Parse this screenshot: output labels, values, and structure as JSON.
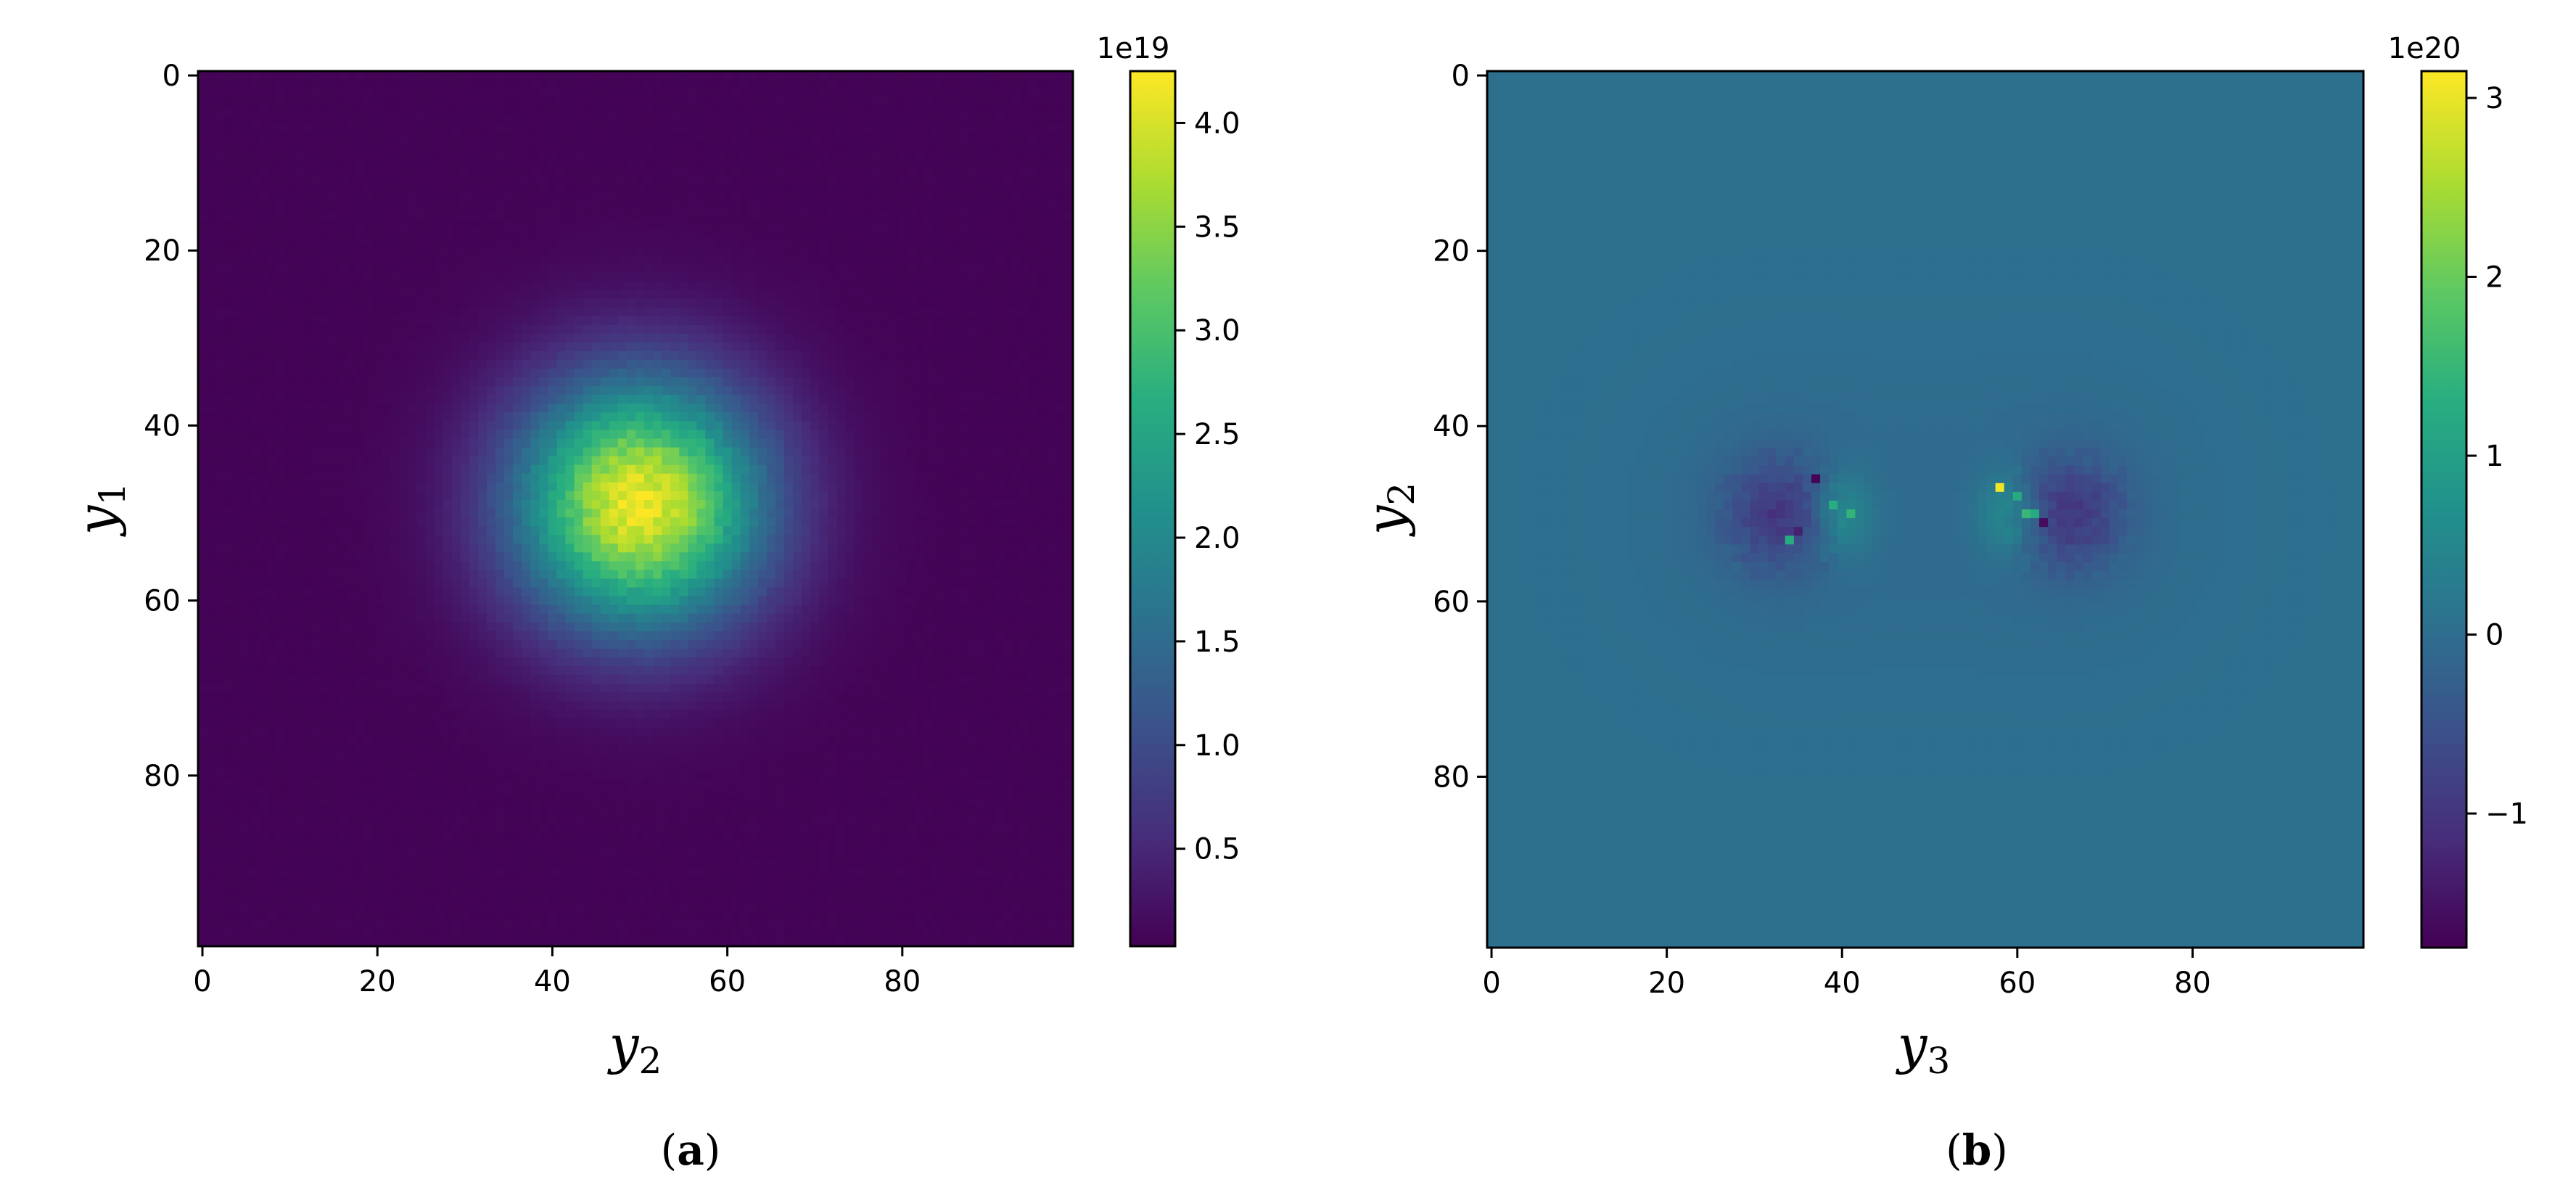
{
  "chart_data": [
    {
      "type": "heatmap",
      "panel": "(a)",
      "caption": "a",
      "xlabel": {
        "var": "y",
        "sub": "2"
      },
      "ylabel": {
        "var": "y",
        "sub": "1"
      },
      "grid": false,
      "xlim": [
        -0.5,
        99.5
      ],
      "ylim": [
        99.5,
        -0.5
      ],
      "xticks": [
        0,
        20,
        40,
        60,
        80
      ],
      "yticks": [
        0,
        20,
        40,
        60,
        80
      ],
      "colormap": "viridis",
      "colorbar": {
        "exponent": "1e19",
        "range": [
          0.03,
          4.25
        ],
        "ticks": [
          0.5,
          1.0,
          1.5,
          2.0,
          2.5,
          3.0,
          3.5,
          4.0
        ],
        "tick_labels": [
          "0.5",
          "1.0",
          "1.5",
          "2.0",
          "2.5",
          "3.0",
          "3.5",
          "4.0"
        ]
      },
      "field": {
        "description": "single isotropic Gaussian peak",
        "center": [
          49,
          50
        ],
        "peak": 4.1,
        "baseline": 0.05,
        "sigma": 10
      }
    },
    {
      "type": "heatmap",
      "panel": "(b)",
      "caption": "b",
      "xlabel": {
        "var": "y",
        "sub": "3"
      },
      "ylabel": {
        "var": "y",
        "sub": "2"
      },
      "grid": false,
      "xlim": [
        -0.5,
        99.5
      ],
      "ylim": [
        99.5,
        -0.5
      ],
      "xticks": [
        0,
        20,
        40,
        60,
        80
      ],
      "yticks": [
        0,
        20,
        40,
        60,
        80
      ],
      "colormap": "viridis",
      "colorbar": {
        "exponent": "1e20",
        "range": [
          -1.75,
          3.15
        ],
        "ticks": [
          -1,
          0,
          1,
          2,
          3
        ],
        "tick_labels": [
          "−1",
          "0",
          "1",
          "2",
          "3"
        ]
      },
      "field": {
        "description": "two symmetric negative lobes with positive inner rims around center",
        "baseline": 0.05,
        "lobes": [
          {
            "center": [
              50,
              33
            ],
            "neg": -0.9,
            "pos": 0.75
          },
          {
            "center": [
              50,
              66
            ],
            "neg": -0.9,
            "pos": 0.75
          }
        ],
        "spikes": [
          {
            "row": 47,
            "col": 58,
            "value": 3.05
          },
          {
            "row": 46,
            "col": 37,
            "value": -1.7
          },
          {
            "row": 51,
            "col": 63,
            "value": -1.6
          },
          {
            "row": 52,
            "col": 35,
            "value": -1.3
          },
          {
            "row": 50,
            "col": 32,
            "value": -1.1
          },
          {
            "row": 49,
            "col": 67,
            "value": -1.0
          },
          {
            "row": 53,
            "col": 34,
            "value": 1.3
          },
          {
            "row": 49,
            "col": 39,
            "value": 1.3
          },
          {
            "row": 50,
            "col": 41,
            "value": 1.45
          },
          {
            "row": 50,
            "col": 61,
            "value": 1.5
          },
          {
            "row": 50,
            "col": 62,
            "value": 1.2
          },
          {
            "row": 48,
            "col": 60,
            "value": 1.2
          }
        ]
      }
    }
  ]
}
